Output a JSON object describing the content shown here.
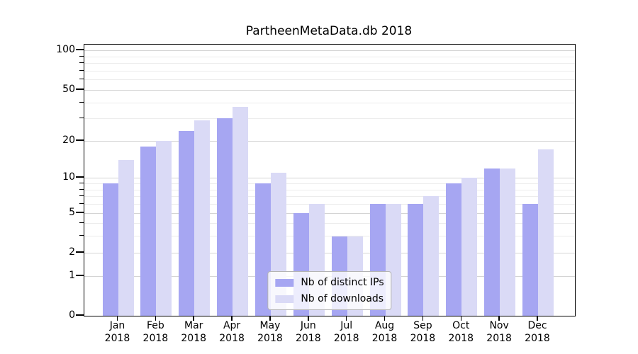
{
  "title": "PartheenMetaData.db 2018",
  "chart_data": {
    "type": "bar",
    "title": "PartheenMetaData.db 2018",
    "categories": [
      "Jan 2018",
      "Feb 2018",
      "Mar 2018",
      "Apr 2018",
      "May 2018",
      "Jun 2018",
      "Jul 2018",
      "Aug 2018",
      "Sep 2018",
      "Oct 2018",
      "Nov 2018",
      "Dec 2018"
    ],
    "series": [
      {
        "name": "Nb of distinct IPs",
        "color": "#a6a6f2",
        "values": [
          9,
          18,
          24,
          30,
          9,
          5,
          3,
          6,
          6,
          9,
          12,
          6
        ]
      },
      {
        "name": "Nb of downloads",
        "color": "#dadaf6",
        "values": [
          14,
          20,
          29,
          37,
          11,
          6,
          3,
          6,
          7,
          10,
          12,
          17
        ]
      }
    ],
    "xlabel": "",
    "ylabel": "",
    "yscale": "log1p (position proportional to log10(value+1))",
    "yticks": [
      0,
      1,
      2,
      5,
      10,
      20,
      50,
      100
    ],
    "minor_yticks": [
      3,
      4,
      6,
      7,
      8,
      9,
      30,
      40,
      60,
      70,
      80,
      90
    ],
    "ylim": [
      0,
      111
    ],
    "grid": "horizontal, major and minor",
    "legend_position": "lower center"
  },
  "colors": {
    "bar_distinct_ips": "#a6a6f2",
    "bar_downloads": "#dadaf6",
    "gridline_major": "#d4d4d4",
    "gridline_minor": "#ececec",
    "axis_frame": "#000000",
    "background": "#ffffff"
  }
}
